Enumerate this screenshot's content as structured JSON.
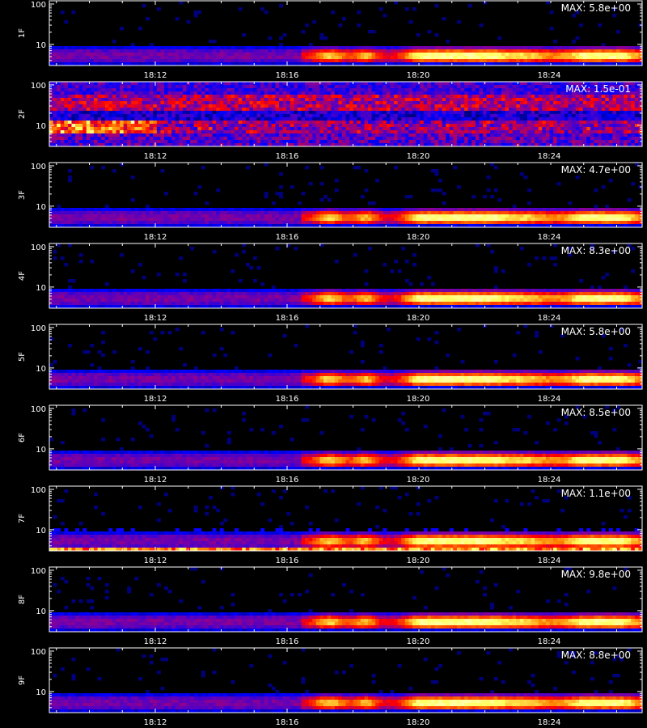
{
  "chart_data": {
    "type": "heatmap",
    "colorscale": [
      "#000000",
      "#0000ff",
      "#8000a0",
      "#ff0000",
      "#ff8000",
      "#ffff60",
      "#ffffff"
    ],
    "x_ticks": [
      "18:12",
      "18:16",
      "18:20",
      "18:24"
    ],
    "y_ticks": [
      "10",
      "100"
    ],
    "yscale": "log",
    "grid": false,
    "panels": [
      {
        "ylabel": "1F",
        "max_label": "MAX: 5.8e+00",
        "pattern": "band"
      },
      {
        "ylabel": "2F",
        "max_label": "MAX: 1.5e-01",
        "pattern": "noisy"
      },
      {
        "ylabel": "3F",
        "max_label": "MAX: 4.7e+00",
        "pattern": "band"
      },
      {
        "ylabel": "4F",
        "max_label": "MAX: 8.3e+00",
        "pattern": "band"
      },
      {
        "ylabel": "5F",
        "max_label": "MAX: 5.8e+00",
        "pattern": "band"
      },
      {
        "ylabel": "6F",
        "max_label": "MAX: 8.5e+00",
        "pattern": "band"
      },
      {
        "ylabel": "7F",
        "max_label": "MAX: 1.1e+00",
        "pattern": "band_bottom"
      },
      {
        "ylabel": "8F",
        "max_label": "MAX: 9.8e+00",
        "pattern": "band"
      },
      {
        "ylabel": "9F",
        "max_label": "MAX: 8.8e+00",
        "pattern": "band"
      }
    ]
  }
}
